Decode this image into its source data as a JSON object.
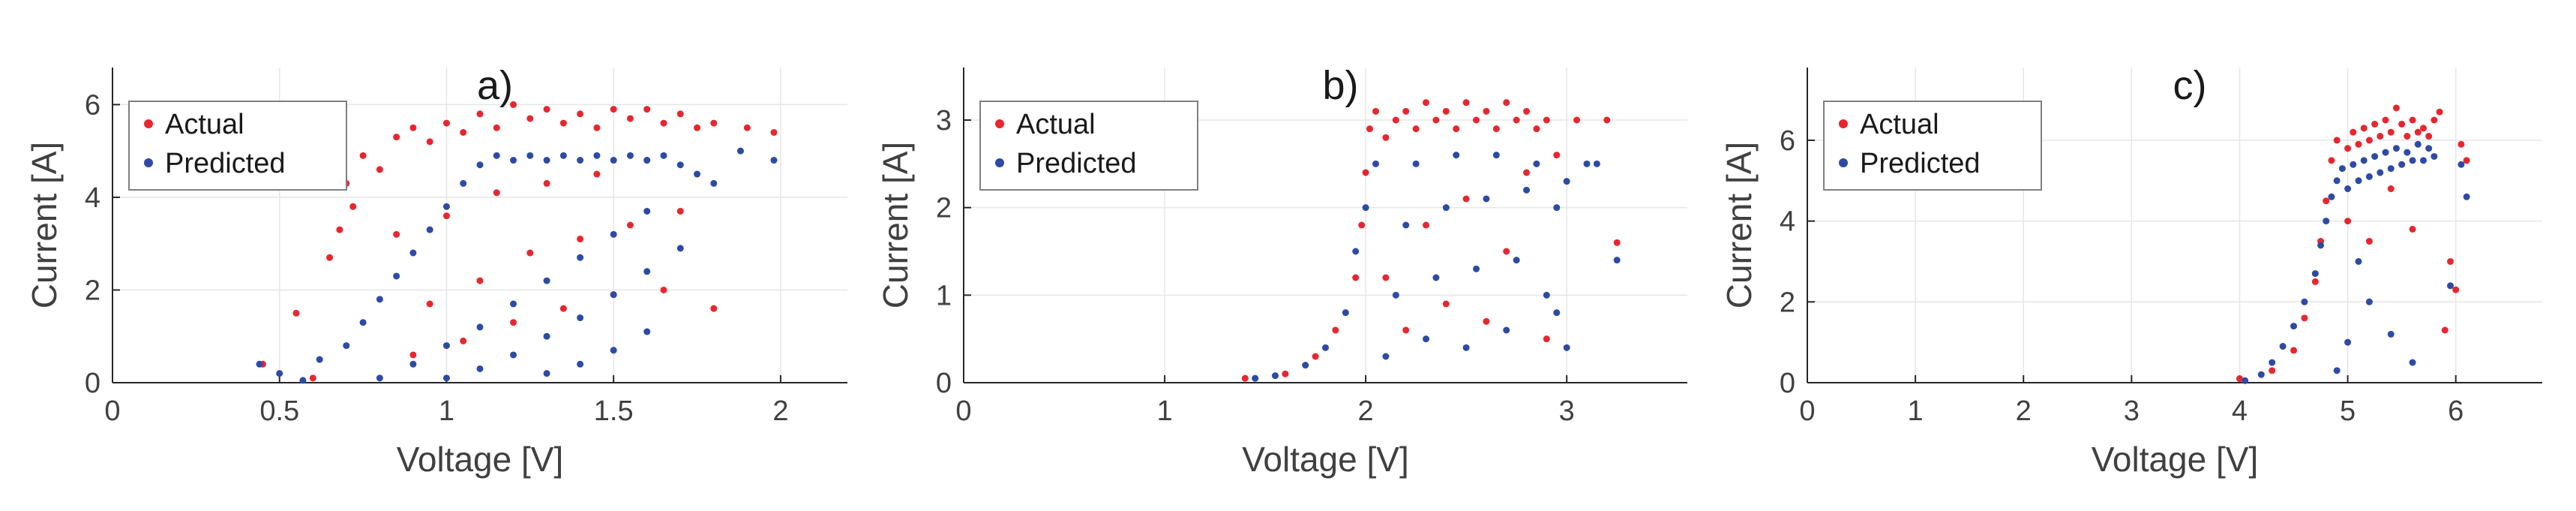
{
  "chart_data": [
    {
      "type": "scatter",
      "title": "a)",
      "xlabel": "Voltage [V]",
      "ylabel": "Current [A]",
      "xlim": [
        0,
        2.2
      ],
      "ylim": [
        0,
        6.8
      ],
      "xticks": [
        0,
        0.5,
        1,
        1.5,
        2
      ],
      "xticklabels": [
        "0",
        "0.5",
        "1",
        "1.5",
        "2"
      ],
      "yticks": [
        0,
        2,
        4,
        6
      ],
      "yticklabels": [
        "0",
        "2",
        "4",
        "6"
      ],
      "grid": true,
      "legend_position": "top-left",
      "series": [
        {
          "name": "Actual",
          "color": "#e8262f",
          "points": [
            [
              0.45,
              0.4
            ],
            [
              0.55,
              1.5
            ],
            [
              0.6,
              0.1
            ],
            [
              0.65,
              2.7
            ],
            [
              0.68,
              3.3
            ],
            [
              0.7,
              4.3
            ],
            [
              0.72,
              3.8
            ],
            [
              0.75,
              4.9
            ],
            [
              0.8,
              4.6
            ],
            [
              0.85,
              5.3
            ],
            [
              0.9,
              5.5
            ],
            [
              0.95,
              5.2
            ],
            [
              1.0,
              5.6
            ],
            [
              1.05,
              5.4
            ],
            [
              1.1,
              5.8
            ],
            [
              1.15,
              5.5
            ],
            [
              1.2,
              6.0
            ],
            [
              1.25,
              5.7
            ],
            [
              1.3,
              5.9
            ],
            [
              1.35,
              5.6
            ],
            [
              1.4,
              5.8
            ],
            [
              1.45,
              5.5
            ],
            [
              1.5,
              5.9
            ],
            [
              1.55,
              5.7
            ],
            [
              1.6,
              5.9
            ],
            [
              1.65,
              5.6
            ],
            [
              1.7,
              5.8
            ],
            [
              1.75,
              5.5
            ],
            [
              1.8,
              5.6
            ],
            [
              1.9,
              5.5
            ],
            [
              1.98,
              5.4
            ],
            [
              0.85,
              3.2
            ],
            [
              1.0,
              3.6
            ],
            [
              1.15,
              4.1
            ],
            [
              1.3,
              4.3
            ],
            [
              1.45,
              4.5
            ],
            [
              1.6,
              4.8
            ],
            [
              0.95,
              1.7
            ],
            [
              1.1,
              2.2
            ],
            [
              1.25,
              2.8
            ],
            [
              1.4,
              3.1
            ],
            [
              1.55,
              3.4
            ],
            [
              1.7,
              3.7
            ],
            [
              0.9,
              0.6
            ],
            [
              1.05,
              0.9
            ],
            [
              1.2,
              1.3
            ],
            [
              1.35,
              1.6
            ],
            [
              1.5,
              1.9
            ],
            [
              1.65,
              2.0
            ],
            [
              1.8,
              1.6
            ]
          ]
        },
        {
          "name": "Predicted",
          "color": "#2e4aa5",
          "points": [
            [
              0.44,
              0.4
            ],
            [
              0.5,
              0.2
            ],
            [
              0.57,
              0.05
            ],
            [
              0.62,
              0.5
            ],
            [
              0.7,
              0.8
            ],
            [
              0.75,
              1.3
            ],
            [
              0.8,
              1.8
            ],
            [
              0.85,
              2.3
            ],
            [
              0.9,
              2.8
            ],
            [
              0.95,
              3.3
            ],
            [
              1.0,
              3.8
            ],
            [
              1.05,
              4.3
            ],
            [
              1.1,
              4.7
            ],
            [
              1.15,
              4.9
            ],
            [
              1.2,
              4.8
            ],
            [
              1.25,
              4.9
            ],
            [
              1.3,
              4.8
            ],
            [
              1.35,
              4.9
            ],
            [
              1.4,
              4.8
            ],
            [
              1.45,
              4.9
            ],
            [
              1.5,
              4.8
            ],
            [
              1.55,
              4.9
            ],
            [
              1.6,
              4.8
            ],
            [
              1.65,
              4.9
            ],
            [
              1.7,
              4.7
            ],
            [
              1.75,
              4.5
            ],
            [
              1.8,
              4.3
            ],
            [
              1.88,
              5.0
            ],
            [
              1.98,
              4.8
            ],
            [
              0.8,
              0.1
            ],
            [
              0.9,
              0.4
            ],
            [
              1.0,
              0.8
            ],
            [
              1.1,
              1.2
            ],
            [
              1.2,
              1.7
            ],
            [
              1.3,
              2.2
            ],
            [
              1.4,
              2.7
            ],
            [
              1.5,
              3.2
            ],
            [
              1.6,
              3.7
            ],
            [
              1.0,
              0.1
            ],
            [
              1.1,
              0.3
            ],
            [
              1.2,
              0.6
            ],
            [
              1.3,
              1.0
            ],
            [
              1.4,
              1.4
            ],
            [
              1.5,
              1.9
            ],
            [
              1.6,
              2.4
            ],
            [
              1.7,
              2.9
            ],
            [
              1.3,
              0.2
            ],
            [
              1.4,
              0.4
            ],
            [
              1.5,
              0.7
            ],
            [
              1.6,
              1.1
            ]
          ]
        }
      ]
    },
    {
      "type": "scatter",
      "title": "b)",
      "xlabel": "Voltage [V]",
      "ylabel": "Current [A]",
      "xlim": [
        0,
        3.6
      ],
      "ylim": [
        0,
        3.6
      ],
      "xticks": [
        0,
        1,
        2,
        3
      ],
      "xticklabels": [
        "0",
        "1",
        "2",
        "3"
      ],
      "yticks": [
        0,
        1,
        2,
        3
      ],
      "yticklabels": [
        "0",
        "1",
        "2",
        "3"
      ],
      "grid": true,
      "legend_position": "top-left",
      "series": [
        {
          "name": "Actual",
          "color": "#e8262f",
          "points": [
            [
              1.4,
              0.05
            ],
            [
              1.6,
              0.1
            ],
            [
              1.75,
              0.3
            ],
            [
              1.85,
              0.6
            ],
            [
              1.95,
              1.2
            ],
            [
              1.98,
              1.8
            ],
            [
              2.0,
              2.4
            ],
            [
              2.02,
              2.9
            ],
            [
              2.05,
              3.1
            ],
            [
              2.1,
              2.8
            ],
            [
              2.15,
              3.0
            ],
            [
              2.2,
              3.1
            ],
            [
              2.25,
              2.9
            ],
            [
              2.3,
              3.2
            ],
            [
              2.35,
              3.0
            ],
            [
              2.4,
              3.1
            ],
            [
              2.45,
              2.9
            ],
            [
              2.5,
              3.2
            ],
            [
              2.55,
              3.0
            ],
            [
              2.6,
              3.1
            ],
            [
              2.65,
              2.9
            ],
            [
              2.7,
              3.2
            ],
            [
              2.75,
              3.0
            ],
            [
              2.8,
              3.1
            ],
            [
              2.85,
              2.9
            ],
            [
              2.9,
              3.0
            ],
            [
              2.95,
              2.6
            ],
            [
              3.05,
              3.0
            ],
            [
              3.2,
              3.0
            ],
            [
              3.25,
              1.6
            ],
            [
              2.1,
              1.2
            ],
            [
              2.2,
              0.6
            ],
            [
              2.3,
              1.8
            ],
            [
              2.4,
              0.9
            ],
            [
              2.5,
              2.1
            ],
            [
              2.6,
              0.7
            ],
            [
              2.7,
              1.5
            ],
            [
              2.8,
              2.4
            ],
            [
              2.9,
              0.5
            ]
          ]
        },
        {
          "name": "Predicted",
          "color": "#2e4aa5",
          "points": [
            [
              1.45,
              0.05
            ],
            [
              1.55,
              0.08
            ],
            [
              1.7,
              0.2
            ],
            [
              1.8,
              0.4
            ],
            [
              1.9,
              0.8
            ],
            [
              1.95,
              1.5
            ],
            [
              2.0,
              2.0
            ],
            [
              2.05,
              2.5
            ],
            [
              2.1,
              0.3
            ],
            [
              2.15,
              1.0
            ],
            [
              2.2,
              1.8
            ],
            [
              2.25,
              2.5
            ],
            [
              2.3,
              0.5
            ],
            [
              2.35,
              1.2
            ],
            [
              2.4,
              2.0
            ],
            [
              2.45,
              2.6
            ],
            [
              2.5,
              0.4
            ],
            [
              2.55,
              1.3
            ],
            [
              2.6,
              2.1
            ],
            [
              2.65,
              2.6
            ],
            [
              2.7,
              0.6
            ],
            [
              2.75,
              1.4
            ],
            [
              2.8,
              2.2
            ],
            [
              2.85,
              2.5
            ],
            [
              2.9,
              1.0
            ],
            [
              2.95,
              2.0
            ],
            [
              3.0,
              2.3
            ],
            [
              3.1,
              2.5
            ],
            [
              3.15,
              2.5
            ],
            [
              3.25,
              1.4
            ],
            [
              3.0,
              0.4
            ],
            [
              2.95,
              0.8
            ]
          ]
        }
      ]
    },
    {
      "type": "scatter",
      "title": "c)",
      "xlabel": "Voltage [V]",
      "ylabel": "Current [A]",
      "xlim": [
        0,
        6.8
      ],
      "ylim": [
        0,
        7.8
      ],
      "xticks": [
        0,
        1,
        2,
        3,
        4,
        5,
        6
      ],
      "xticklabels": [
        "0",
        "1",
        "2",
        "3",
        "4",
        "5",
        "6"
      ],
      "yticks": [
        0,
        2,
        4,
        6
      ],
      "yticklabels": [
        "0",
        "2",
        "4",
        "6"
      ],
      "grid": true,
      "legend_position": "top-left",
      "series": [
        {
          "name": "Actual",
          "color": "#e8262f",
          "points": [
            [
              4.0,
              0.1
            ],
            [
              4.3,
              0.3
            ],
            [
              4.5,
              0.8
            ],
            [
              4.6,
              1.6
            ],
            [
              4.7,
              2.5
            ],
            [
              4.75,
              3.5
            ],
            [
              4.8,
              4.5
            ],
            [
              4.85,
              5.5
            ],
            [
              4.9,
              6.0
            ],
            [
              5.0,
              5.8
            ],
            [
              5.05,
              6.2
            ],
            [
              5.1,
              5.9
            ],
            [
              5.15,
              6.3
            ],
            [
              5.2,
              6.0
            ],
            [
              5.25,
              6.4
            ],
            [
              5.3,
              6.1
            ],
            [
              5.35,
              6.5
            ],
            [
              5.4,
              6.2
            ],
            [
              5.45,
              6.8
            ],
            [
              5.5,
              6.4
            ],
            [
              5.55,
              6.1
            ],
            [
              5.6,
              6.5
            ],
            [
              5.65,
              6.2
            ],
            [
              5.7,
              6.3
            ],
            [
              5.75,
              6.1
            ],
            [
              5.8,
              6.5
            ],
            [
              5.85,
              6.7
            ],
            [
              6.05,
              5.9
            ],
            [
              6.1,
              5.5
            ],
            [
              5.95,
              3.0
            ],
            [
              6.0,
              2.3
            ],
            [
              5.9,
              1.3
            ],
            [
              5.0,
              4.0
            ],
            [
              5.2,
              3.5
            ],
            [
              5.4,
              4.8
            ],
            [
              5.6,
              3.8
            ]
          ]
        },
        {
          "name": "Predicted",
          "color": "#2e4aa5",
          "points": [
            [
              4.05,
              0.05
            ],
            [
              4.2,
              0.2
            ],
            [
              4.3,
              0.5
            ],
            [
              4.4,
              0.9
            ],
            [
              4.5,
              1.4
            ],
            [
              4.6,
              2.0
            ],
            [
              4.7,
              2.7
            ],
            [
              4.75,
              3.4
            ],
            [
              4.8,
              4.0
            ],
            [
              4.85,
              4.6
            ],
            [
              4.9,
              5.0
            ],
            [
              4.95,
              5.3
            ],
            [
              5.0,
              4.8
            ],
            [
              5.05,
              5.4
            ],
            [
              5.1,
              5.0
            ],
            [
              5.15,
              5.5
            ],
            [
              5.2,
              5.1
            ],
            [
              5.25,
              5.6
            ],
            [
              5.3,
              5.2
            ],
            [
              5.35,
              5.7
            ],
            [
              5.4,
              5.3
            ],
            [
              5.45,
              5.8
            ],
            [
              5.5,
              5.4
            ],
            [
              5.55,
              5.7
            ],
            [
              5.6,
              5.5
            ],
            [
              5.65,
              5.9
            ],
            [
              5.7,
              5.5
            ],
            [
              5.75,
              5.8
            ],
            [
              5.8,
              5.6
            ],
            [
              6.05,
              5.4
            ],
            [
              6.1,
              4.6
            ],
            [
              5.95,
              2.4
            ],
            [
              5.0,
              1.0
            ],
            [
              5.2,
              2.0
            ],
            [
              5.4,
              1.2
            ],
            [
              5.6,
              0.5
            ],
            [
              4.9,
              0.3
            ],
            [
              5.1,
              3.0
            ]
          ]
        }
      ]
    }
  ]
}
